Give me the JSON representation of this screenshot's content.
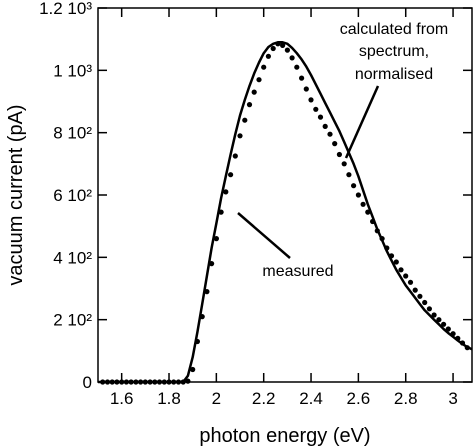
{
  "chart_data": {
    "type": "line",
    "xlabel": "photon energy (eV)",
    "ylabel": "vacuum current (pA)",
    "xlim": [
      1.5,
      3.08
    ],
    "ylim": [
      0,
      1200
    ],
    "grid": false,
    "legend": "none",
    "x_ticks": [
      {
        "value": 1.6,
        "label": "1.6"
      },
      {
        "value": 1.8,
        "label": "1.8"
      },
      {
        "value": 2.0,
        "label": "2"
      },
      {
        "value": 2.2,
        "label": "2.2"
      },
      {
        "value": 2.4,
        "label": "2.4"
      },
      {
        "value": 2.6,
        "label": "2.6"
      },
      {
        "value": 2.8,
        "label": "2.8"
      },
      {
        "value": 3.0,
        "label": "3"
      }
    ],
    "y_ticks": [
      {
        "value": 0,
        "label": "0"
      },
      {
        "value": 200,
        "label": "2 10²"
      },
      {
        "value": 400,
        "label": "4 10²"
      },
      {
        "value": 600,
        "label": "6 10²"
      },
      {
        "value": 800,
        "label": "8 10²"
      },
      {
        "value": 1000,
        "label": "1 10³"
      },
      {
        "value": 1200,
        "label": "1.2 10³"
      }
    ],
    "series": [
      {
        "style": "dots",
        "x": [
          1.52,
          1.54,
          1.56,
          1.58,
          1.6,
          1.62,
          1.64,
          1.66,
          1.68,
          1.7,
          1.72,
          1.74,
          1.76,
          1.78,
          1.8,
          1.82,
          1.84,
          1.86,
          1.88,
          1.9,
          1.92,
          1.94,
          1.96,
          1.98,
          2.0,
          2.02,
          2.04,
          2.06,
          2.08,
          2.1,
          2.12,
          2.14,
          2.16,
          2.18,
          2.2,
          2.22,
          2.24,
          2.26,
          2.28,
          2.3,
          2.32,
          2.34,
          2.36,
          2.38,
          2.4,
          2.42,
          2.44,
          2.46,
          2.48,
          2.5,
          2.52,
          2.54,
          2.56,
          2.58,
          2.6,
          2.62,
          2.64,
          2.66,
          2.68,
          2.7,
          2.72,
          2.74,
          2.76,
          2.78,
          2.8,
          2.82,
          2.84,
          2.86,
          2.88,
          2.9,
          2.92,
          2.94,
          2.96,
          2.98,
          3.0,
          3.02,
          3.04,
          3.06
        ],
        "y": [
          0,
          0,
          0,
          0,
          0,
          0,
          0,
          0,
          0,
          0,
          0,
          0,
          0,
          0,
          0,
          0,
          0,
          0,
          3,
          40,
          130,
          210,
          290,
          380,
          460,
          545,
          610,
          665,
          725,
          790,
          840,
          890,
          930,
          970,
          1010,
          1045,
          1070,
          1085,
          1080,
          1065,
          1040,
          1010,
          975,
          940,
          905,
          875,
          850,
          820,
          795,
          765,
          730,
          700,
          665,
          630,
          600,
          570,
          545,
          515,
          485,
          460,
          430,
          405,
          385,
          360,
          340,
          320,
          295,
          275,
          255,
          235,
          215,
          200,
          185,
          170,
          155,
          140,
          125,
          110
        ]
      },
      {
        "style": "line",
        "x": [
          1.5,
          1.6,
          1.7,
          1.8,
          1.86,
          1.88,
          1.9,
          1.92,
          1.94,
          1.96,
          1.98,
          2.0,
          2.02,
          2.04,
          2.06,
          2.08,
          2.1,
          2.12,
          2.14,
          2.16,
          2.18,
          2.2,
          2.22,
          2.24,
          2.26,
          2.28,
          2.3,
          2.32,
          2.34,
          2.36,
          2.38,
          2.4,
          2.42,
          2.44,
          2.46,
          2.48,
          2.5,
          2.52,
          2.54,
          2.56,
          2.58,
          2.6,
          2.62,
          2.64,
          2.66,
          2.68,
          2.7,
          2.72,
          2.74,
          2.76,
          2.78,
          2.8,
          2.82,
          2.84,
          2.86,
          2.88,
          2.9,
          2.92,
          2.94,
          2.96,
          2.98,
          3.0,
          3.02,
          3.04,
          3.06,
          3.08
        ],
        "y": [
          0,
          0,
          0,
          0,
          0,
          20,
          80,
          160,
          250,
          340,
          430,
          510,
          590,
          660,
          730,
          795,
          855,
          905,
          950,
          990,
          1025,
          1055,
          1075,
          1085,
          1090,
          1090,
          1085,
          1072,
          1055,
          1035,
          1012,
          985,
          955,
          925,
          895,
          865,
          835,
          805,
          770,
          735,
          700,
          660,
          615,
          570,
          530,
          490,
          455,
          420,
          390,
          360,
          335,
          310,
          290,
          270,
          250,
          230,
          215,
          200,
          185,
          170,
          157,
          145,
          133,
          122,
          112,
          105
        ]
      }
    ],
    "annotations": {
      "calculated": [
        "calculated from",
        "spectrum,",
        "normalised"
      ],
      "measured": "measured"
    }
  }
}
